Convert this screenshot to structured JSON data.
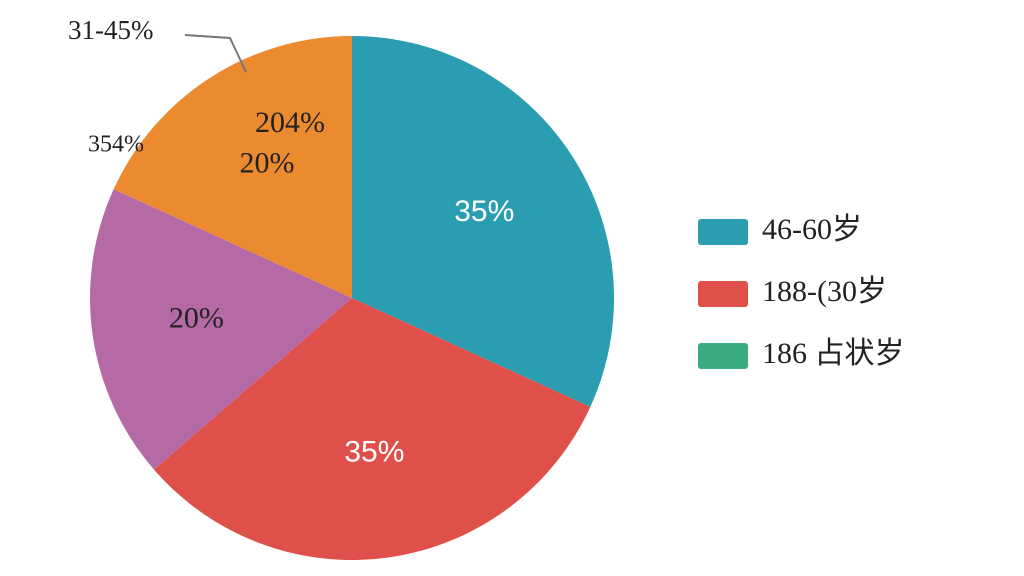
{
  "chart_data": {
    "type": "pie",
    "values": [
      35,
      35,
      20,
      20
    ],
    "value_labels": [
      "35%",
      "35%",
      "20%",
      "20%"
    ],
    "colors": [
      "#2a9db0",
      "#e0504a",
      "#b56aa6",
      "#ec8a30"
    ],
    "label_colors": [
      "#ffffff",
      "#ffffff",
      "#222222",
      "#222222"
    ],
    "annotations": [
      "31-45%",
      "354%",
      "204%"
    ],
    "legend": [
      {
        "name": "46-60岁",
        "color": "#2a9db0"
      },
      {
        "name": "188-(30岁",
        "color": "#e0504a"
      },
      {
        "name": "186 占状岁",
        "color": "#3aaa80"
      }
    ]
  }
}
